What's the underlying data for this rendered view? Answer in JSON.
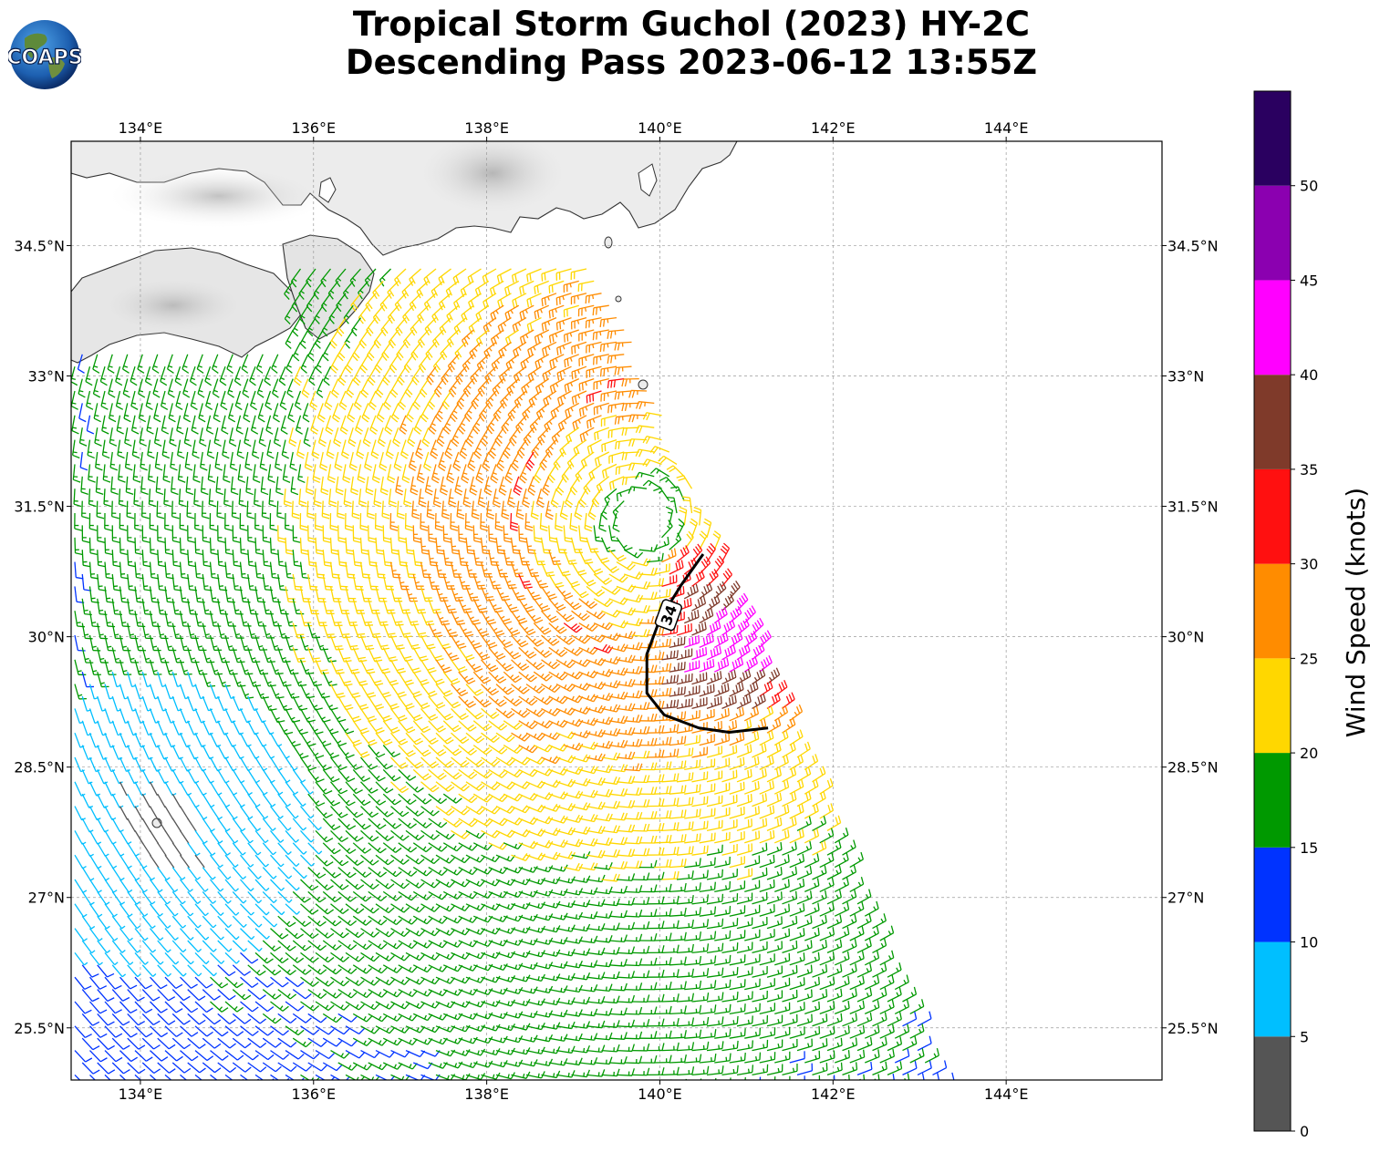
{
  "title": {
    "line1": "Tropical Storm Guchol (2023) HY-2C",
    "line2": "Descending Pass 2023-06-12 13:55Z"
  },
  "logo": {
    "text": "COAPS",
    "icon": "globe-logo"
  },
  "map": {
    "lon_range": [
      133.2,
      145.8
    ],
    "lat_range": [
      24.9,
      35.7
    ],
    "lon_ticks": [
      {
        "value": 134,
        "label": "134°E"
      },
      {
        "value": 136,
        "label": "136°E"
      },
      {
        "value": 138,
        "label": "138°E"
      },
      {
        "value": 140,
        "label": "140°E"
      },
      {
        "value": 142,
        "label": "142°E"
      },
      {
        "value": 144,
        "label": "144°E"
      }
    ],
    "lat_ticks": [
      {
        "value": 25.5,
        "label": "25.5°N"
      },
      {
        "value": 27,
        "label": "27°N"
      },
      {
        "value": 28.5,
        "label": "28.5°N"
      },
      {
        "value": 30,
        "label": "30°N"
      },
      {
        "value": 31.5,
        "label": "31.5°N"
      },
      {
        "value": 33,
        "label": "33°N"
      },
      {
        "value": 34.5,
        "label": "34.5°N"
      }
    ],
    "gridlines": true,
    "storm_center": {
      "lon": 139.8,
      "lat": 31.35
    },
    "wind_radius_label": "34",
    "wind_radius_contour": [
      [
        140.5,
        30.95
      ],
      [
        140.25,
        30.6
      ],
      [
        140.0,
        30.2
      ],
      [
        139.85,
        29.8
      ],
      [
        139.85,
        29.35
      ],
      [
        140.05,
        29.1
      ],
      [
        140.45,
        28.95
      ],
      [
        140.8,
        28.9
      ],
      [
        141.25,
        28.95
      ]
    ]
  },
  "colorbar": {
    "title": "Wind Speed (knots)",
    "min": 0,
    "max": 55,
    "bins": [
      {
        "from": 0,
        "to": 5,
        "color": "#555555"
      },
      {
        "from": 5,
        "to": 10,
        "color": "#00bfff"
      },
      {
        "from": 10,
        "to": 15,
        "color": "#0033ff"
      },
      {
        "from": 15,
        "to": 20,
        "color": "#009900"
      },
      {
        "from": 20,
        "to": 25,
        "color": "#ffd700"
      },
      {
        "from": 25,
        "to": 30,
        "color": "#ff8c00"
      },
      {
        "from": 30,
        "to": 35,
        "color": "#ff1010"
      },
      {
        "from": 35,
        "to": 40,
        "color": "#7f3a2a"
      },
      {
        "from": 40,
        "to": 45,
        "color": "#ff00ff"
      },
      {
        "from": 45,
        "to": 50,
        "color": "#8b00b0"
      },
      {
        "from": 50,
        "to": 55,
        "color": "#2a0060"
      }
    ],
    "tick_labels": [
      "0",
      "5",
      "10",
      "15",
      "20",
      "25",
      "30",
      "35",
      "40",
      "45",
      "50"
    ]
  }
}
